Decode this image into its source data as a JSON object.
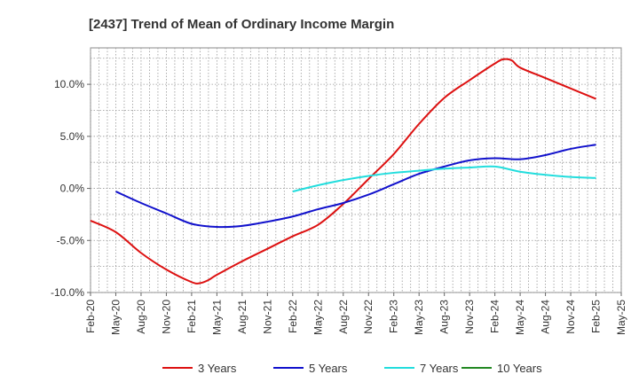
{
  "chart_data": {
    "type": "line",
    "title": "[2437]  Trend of Mean of Ordinary Income Margin",
    "xlabel": "",
    "ylabel": "",
    "x_tick_labels": [
      "Feb-20",
      "May-20",
      "Aug-20",
      "Nov-20",
      "Feb-21",
      "May-21",
      "Aug-21",
      "Nov-21",
      "Feb-22",
      "May-22",
      "Aug-22",
      "Nov-22",
      "Feb-23",
      "May-23",
      "Aug-23",
      "Nov-23",
      "Feb-24",
      "May-24",
      "Aug-24",
      "Nov-24",
      "Feb-25",
      "May-25"
    ],
    "y_tick_labels": [
      "10.0%",
      "5.0%",
      "0.0%",
      "-5.0%",
      "-10.0%"
    ],
    "y_ticks": [
      10,
      5,
      0,
      -5,
      -10
    ],
    "ylim": [
      -10,
      13.5
    ],
    "grid": true,
    "legend_position": "bottom",
    "series": [
      {
        "name": "3 Years",
        "color": "#dd1111",
        "points": [
          [
            "Feb-20",
            -3.1
          ],
          [
            "May-20",
            -4.2
          ],
          [
            "Aug-20",
            -6.2
          ],
          [
            "Nov-20",
            -7.8
          ],
          [
            "Feb-21",
            -9.0
          ],
          [
            "Mar-21",
            -9.1
          ],
          [
            "Apr-21",
            -8.8
          ],
          [
            "May-21",
            -8.3
          ],
          [
            "Aug-21",
            -7.0
          ],
          [
            "Nov-21",
            -5.8
          ],
          [
            "Feb-22",
            -4.6
          ],
          [
            "May-22",
            -3.5
          ],
          [
            "Aug-22",
            -1.5
          ],
          [
            "Nov-22",
            0.9
          ],
          [
            "Feb-23",
            3.3
          ],
          [
            "May-23",
            6.2
          ],
          [
            "Aug-23",
            8.7
          ],
          [
            "Nov-23",
            10.4
          ],
          [
            "Feb-24",
            12.0
          ],
          [
            "Mar-24",
            12.4
          ],
          [
            "Apr-24",
            12.3
          ],
          [
            "May-24",
            11.6
          ],
          [
            "Aug-24",
            10.6
          ],
          [
            "Nov-24",
            9.6
          ],
          [
            "Feb-25",
            8.6
          ]
        ]
      },
      {
        "name": "5 Years",
        "color": "#1111cc",
        "points": [
          [
            "May-20",
            -0.3
          ],
          [
            "Aug-20",
            -1.4
          ],
          [
            "Nov-20",
            -2.4
          ],
          [
            "Feb-21",
            -3.4
          ],
          [
            "May-21",
            -3.7
          ],
          [
            "Aug-21",
            -3.6
          ],
          [
            "Nov-21",
            -3.2
          ],
          [
            "Feb-22",
            -2.7
          ],
          [
            "May-22",
            -2.0
          ],
          [
            "Aug-22",
            -1.4
          ],
          [
            "Nov-22",
            -0.6
          ],
          [
            "Feb-23",
            0.4
          ],
          [
            "May-23",
            1.4
          ],
          [
            "Aug-23",
            2.1
          ],
          [
            "Nov-23",
            2.7
          ],
          [
            "Feb-24",
            2.9
          ],
          [
            "May-24",
            2.8
          ],
          [
            "Aug-24",
            3.2
          ],
          [
            "Nov-24",
            3.8
          ],
          [
            "Feb-25",
            4.2
          ]
        ]
      },
      {
        "name": "7 Years",
        "color": "#22dddd",
        "points": [
          [
            "Feb-22",
            -0.3
          ],
          [
            "May-22",
            0.3
          ],
          [
            "Aug-22",
            0.8
          ],
          [
            "Nov-22",
            1.2
          ],
          [
            "Feb-23",
            1.5
          ],
          [
            "May-23",
            1.7
          ],
          [
            "Aug-23",
            1.9
          ],
          [
            "Nov-23",
            2.0
          ],
          [
            "Feb-24",
            2.1
          ],
          [
            "May-24",
            1.6
          ],
          [
            "Aug-24",
            1.3
          ],
          [
            "Nov-24",
            1.1
          ],
          [
            "Feb-25",
            1.0
          ]
        ]
      },
      {
        "name": "10 Years",
        "color": "#228822",
        "points": []
      }
    ]
  }
}
